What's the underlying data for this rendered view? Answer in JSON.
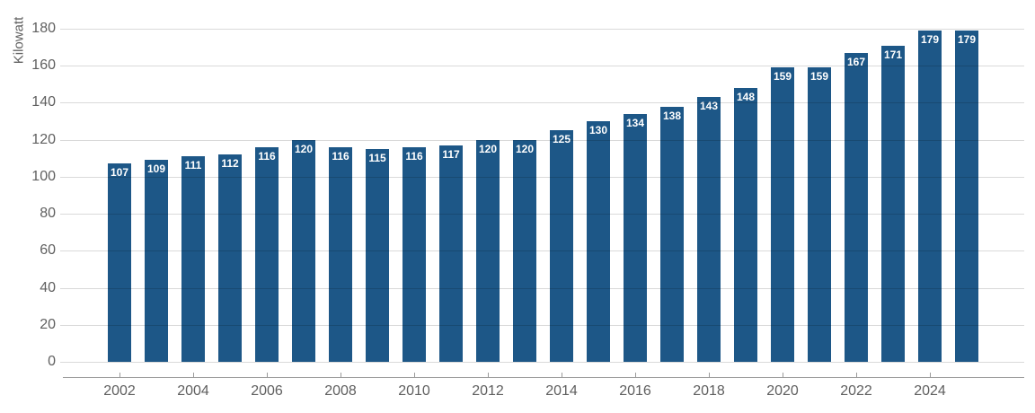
{
  "chart_data": {
    "type": "bar",
    "title": "",
    "ylabel": "Kilowatt",
    "xlabel": "",
    "ylim": [
      0,
      180
    ],
    "yticks": [
      0,
      20,
      40,
      60,
      80,
      100,
      120,
      140,
      160,
      180
    ],
    "categories": [
      "2002",
      "2003",
      "2004",
      "2005",
      "2006",
      "2007",
      "2008",
      "2009",
      "2010",
      "2011",
      "2012",
      "2013",
      "2014",
      "2015",
      "2016",
      "2017",
      "2018",
      "2019",
      "2020",
      "2021",
      "2022",
      "2023",
      "2024",
      "2025"
    ],
    "values": [
      107,
      109,
      111,
      112,
      116,
      120,
      116,
      115,
      116,
      117,
      120,
      120,
      125,
      130,
      134,
      138,
      143,
      148,
      159,
      159,
      167,
      171,
      179,
      179
    ],
    "xticks": [
      "2002",
      "2004",
      "2006",
      "2008",
      "2010",
      "2012",
      "2014",
      "2016",
      "2018",
      "2020",
      "2022",
      "2024"
    ],
    "grid": true,
    "legend": "none",
    "bar_color": "#1d5787",
    "value_label_color": "#ffffff",
    "axis_color": "#9a9a9a",
    "tick_text_color": "#5f5f5f"
  }
}
